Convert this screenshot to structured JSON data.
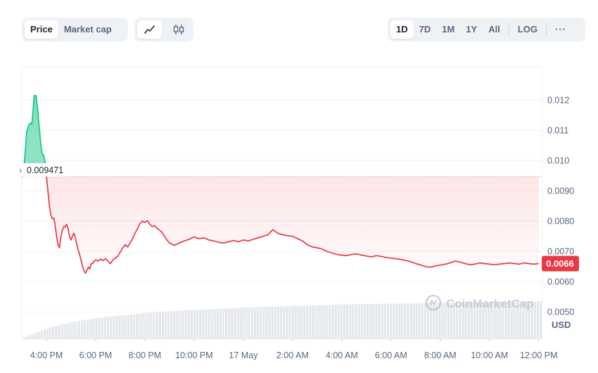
{
  "toolbar": {
    "type_tabs": [
      {
        "label": "Price",
        "active": true
      },
      {
        "label": "Market cap",
        "active": false
      }
    ],
    "style_tabs": [
      {
        "icon": "line-chart-icon",
        "active": true
      },
      {
        "icon": "candlestick-icon",
        "active": false
      }
    ],
    "range_tabs": [
      {
        "label": "1D",
        "active": true
      },
      {
        "label": "7D",
        "active": false
      },
      {
        "label": "1M",
        "active": false
      },
      {
        "label": "1Y",
        "active": false
      },
      {
        "label": "All",
        "active": false
      }
    ],
    "log_label": "LOG",
    "more_label": "···"
  },
  "watermark": "CoinMarketCap",
  "colors": {
    "up": "#16c784",
    "down": "#ea3943",
    "grid": "#eff2f5",
    "volume": "#e4e7ec",
    "reference": "#b3b9c4"
  },
  "chart_data": {
    "type": "line",
    "currency": "USD",
    "reference_price": "0.009471",
    "reference_value": 0.009471,
    "current_price": "0.0066",
    "current_value": 0.0066,
    "ylim": [
      0.0041,
      0.0131
    ],
    "y_ticks": [
      {
        "label": "0.012",
        "value": 0.012
      },
      {
        "label": "0.011",
        "value": 0.011
      },
      {
        "label": "0.010",
        "value": 0.01
      },
      {
        "label": "0.0090",
        "value": 0.009
      },
      {
        "label": "0.0080",
        "value": 0.008
      },
      {
        "label": "0.0070",
        "value": 0.007
      },
      {
        "label": "0.0060",
        "value": 0.006
      },
      {
        "label": "0.0050",
        "value": 0.005
      }
    ],
    "x_range": [
      0,
      21.15
    ],
    "x_ticks": [
      {
        "label": "4:00 PM",
        "h": 1
      },
      {
        "label": "6:00 PM",
        "h": 3
      },
      {
        "label": "8:00 PM",
        "h": 5
      },
      {
        "label": "10:00 PM",
        "h": 7
      },
      {
        "label": "17 May",
        "h": 9
      },
      {
        "label": "2:00 AM",
        "h": 11
      },
      {
        "label": "4:00 AM",
        "h": 13
      },
      {
        "label": "6:00 AM",
        "h": 15
      },
      {
        "label": "8:00 AM",
        "h": 17
      },
      {
        "label": "10:00 AM",
        "h": 19
      },
      {
        "label": "12:00 PM",
        "h": 21
      }
    ],
    "series": [
      {
        "points": [
          [
            0.06,
            0.00958
          ],
          [
            0.12,
            0.0101
          ],
          [
            0.2,
            0.01095
          ],
          [
            0.27,
            0.01115
          ],
          [
            0.35,
            0.01125
          ],
          [
            0.41,
            0.0112
          ],
          [
            0.46,
            0.01168
          ],
          [
            0.5,
            0.01215
          ],
          [
            0.58,
            0.01215
          ],
          [
            0.65,
            0.01165
          ],
          [
            0.72,
            0.011
          ],
          [
            0.78,
            0.0105
          ],
          [
            0.83,
            0.0102
          ],
          [
            0.88,
            0.0102
          ],
          [
            0.94,
            0.01
          ],
          [
            1.0,
            0.00948
          ],
          [
            1.06,
            0.009
          ],
          [
            1.12,
            0.0085
          ],
          [
            1.18,
            0.0082
          ],
          [
            1.24,
            0.00808
          ],
          [
            1.3,
            0.0081
          ],
          [
            1.35,
            0.0079
          ],
          [
            1.41,
            0.00752
          ],
          [
            1.47,
            0.00722
          ],
          [
            1.53,
            0.00712
          ],
          [
            1.59,
            0.0075
          ],
          [
            1.65,
            0.0077
          ],
          [
            1.71,
            0.00782
          ],
          [
            1.76,
            0.0078
          ],
          [
            1.82,
            0.0079
          ],
          [
            1.88,
            0.00775
          ],
          [
            1.94,
            0.00748
          ],
          [
            2.0,
            0.00738
          ],
          [
            2.06,
            0.00752
          ],
          [
            2.12,
            0.0076
          ],
          [
            2.18,
            0.00742
          ],
          [
            2.24,
            0.0072
          ],
          [
            2.29,
            0.00705
          ],
          [
            2.35,
            0.0069
          ],
          [
            2.41,
            0.0067
          ],
          [
            2.47,
            0.0065
          ],
          [
            2.53,
            0.00635
          ],
          [
            2.59,
            0.00628
          ],
          [
            2.65,
            0.0064
          ],
          [
            2.71,
            0.00648
          ],
          [
            2.76,
            0.00642
          ],
          [
            2.82,
            0.0066
          ],
          [
            2.88,
            0.0066
          ],
          [
            2.94,
            0.00668
          ],
          [
            3.0,
            0.00672
          ],
          [
            3.1,
            0.00668
          ],
          [
            3.2,
            0.00675
          ],
          [
            3.3,
            0.0067
          ],
          [
            3.4,
            0.00676
          ],
          [
            3.5,
            0.00668
          ],
          [
            3.6,
            0.0066
          ],
          [
            3.7,
            0.00672
          ],
          [
            3.8,
            0.00678
          ],
          [
            3.9,
            0.00685
          ],
          [
            4.0,
            0.00698
          ],
          [
            4.1,
            0.00712
          ],
          [
            4.2,
            0.00722
          ],
          [
            4.3,
            0.00715
          ],
          [
            4.4,
            0.00728
          ],
          [
            4.5,
            0.00742
          ],
          [
            4.6,
            0.0076
          ],
          [
            4.7,
            0.00775
          ],
          [
            4.8,
            0.00792
          ],
          [
            4.9,
            0.008
          ],
          [
            5.0,
            0.00796
          ],
          [
            5.1,
            0.00802
          ],
          [
            5.2,
            0.0079
          ],
          [
            5.3,
            0.00782
          ],
          [
            5.4,
            0.00785
          ],
          [
            5.5,
            0.00776
          ],
          [
            5.6,
            0.0077
          ],
          [
            5.7,
            0.00762
          ],
          [
            5.8,
            0.0075
          ],
          [
            5.9,
            0.00738
          ],
          [
            6.0,
            0.00728
          ],
          [
            6.2,
            0.0072
          ],
          [
            6.4,
            0.00728
          ],
          [
            6.6,
            0.00735
          ],
          [
            6.8,
            0.0074
          ],
          [
            7.0,
            0.00748
          ],
          [
            7.2,
            0.00742
          ],
          [
            7.4,
            0.00745
          ],
          [
            7.6,
            0.00738
          ],
          [
            7.8,
            0.00735
          ],
          [
            8.0,
            0.0073
          ],
          [
            8.2,
            0.00728
          ],
          [
            8.4,
            0.00732
          ],
          [
            8.6,
            0.00736
          ],
          [
            8.8,
            0.00732
          ],
          [
            9.0,
            0.00738
          ],
          [
            9.2,
            0.00735
          ],
          [
            9.4,
            0.0074
          ],
          [
            9.6,
            0.00745
          ],
          [
            9.8,
            0.0075
          ],
          [
            10.0,
            0.00755
          ],
          [
            10.2,
            0.00772
          ],
          [
            10.4,
            0.0076
          ],
          [
            10.6,
            0.00755
          ],
          [
            10.8,
            0.00752
          ],
          [
            11.0,
            0.0075
          ],
          [
            11.2,
            0.00742
          ],
          [
            11.4,
            0.00735
          ],
          [
            11.6,
            0.00722
          ],
          [
            11.8,
            0.00715
          ],
          [
            12.0,
            0.00712
          ],
          [
            12.2,
            0.00708
          ],
          [
            12.4,
            0.007
          ],
          [
            12.6,
            0.00695
          ],
          [
            12.8,
            0.0069
          ],
          [
            13.0,
            0.00688
          ],
          [
            13.2,
            0.00686
          ],
          [
            13.4,
            0.0069
          ],
          [
            13.6,
            0.00692
          ],
          [
            13.8,
            0.00688
          ],
          [
            14.0,
            0.00685
          ],
          [
            14.2,
            0.00682
          ],
          [
            14.4,
            0.00686
          ],
          [
            14.6,
            0.00684
          ],
          [
            14.8,
            0.0068
          ],
          [
            15.0,
            0.00678
          ],
          [
            15.2,
            0.00676
          ],
          [
            15.4,
            0.00674
          ],
          [
            15.6,
            0.0067
          ],
          [
            15.8,
            0.00666
          ],
          [
            16.0,
            0.0066
          ],
          [
            16.2,
            0.00655
          ],
          [
            16.4,
            0.0065
          ],
          [
            16.6,
            0.00648
          ],
          [
            16.8,
            0.00652
          ],
          [
            17.0,
            0.00655
          ],
          [
            17.2,
            0.00658
          ],
          [
            17.4,
            0.00662
          ],
          [
            17.6,
            0.00668
          ],
          [
            17.8,
            0.00665
          ],
          [
            18.0,
            0.0066
          ],
          [
            18.2,
            0.00656
          ],
          [
            18.4,
            0.00658
          ],
          [
            18.6,
            0.00662
          ],
          [
            18.8,
            0.0066
          ],
          [
            19.0,
            0.00658
          ],
          [
            19.2,
            0.00656
          ],
          [
            19.4,
            0.00658
          ],
          [
            19.6,
            0.0066
          ],
          [
            19.8,
            0.00662
          ],
          [
            20.0,
            0.0066
          ],
          [
            20.2,
            0.00658
          ],
          [
            20.4,
            0.00662
          ],
          [
            20.6,
            0.0066
          ],
          [
            20.8,
            0.00658
          ],
          [
            21.0,
            0.0066
          ]
        ]
      }
    ],
    "volume_relative": [
      0.05,
      0.3,
      0.45,
      0.55,
      0.62,
      0.68,
      0.72,
      0.76,
      0.79,
      0.82,
      0.84,
      0.86,
      0.88,
      0.9,
      0.91,
      0.92,
      0.93,
      0.94,
      0.95,
      0.96,
      0.97,
      0.98
    ]
  }
}
